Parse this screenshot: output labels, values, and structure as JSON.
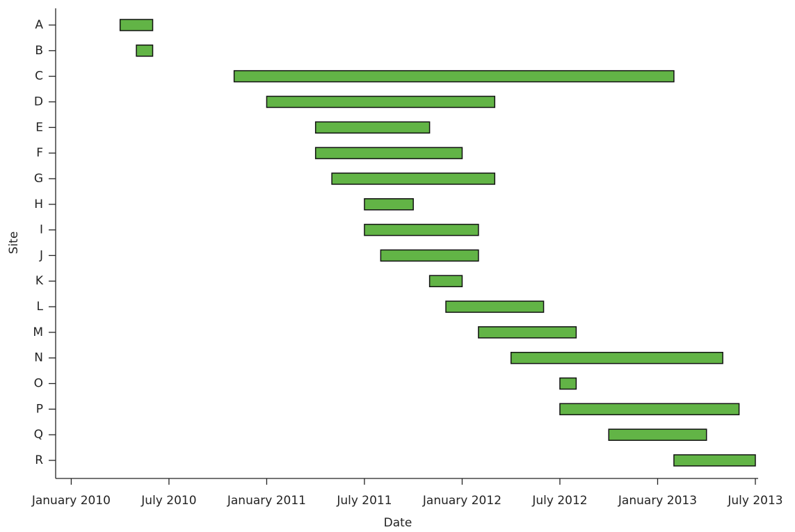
{
  "chart_data": {
    "type": "gantt",
    "xlabel": "Date",
    "ylabel": "Site",
    "categories": [
      "A",
      "B",
      "C",
      "D",
      "E",
      "F",
      "G",
      "H",
      "I",
      "J",
      "K",
      "L",
      "M",
      "N",
      "O",
      "P",
      "Q",
      "R"
    ],
    "start": [
      "2010-04",
      "2010-05",
      "2010-11",
      "2011-01",
      "2011-04",
      "2011-04",
      "2011-05",
      "2011-07",
      "2011-07",
      "2011-08",
      "2011-11",
      "2011-12",
      "2012-02",
      "2012-04",
      "2012-07",
      "2012-07",
      "2012-10",
      "2013-02"
    ],
    "end": [
      "2010-06",
      "2010-06",
      "2013-02",
      "2012-03",
      "2011-11",
      "2012-01",
      "2012-03",
      "2011-10",
      "2012-02",
      "2012-02",
      "2012-01",
      "2012-06",
      "2012-08",
      "2013-05",
      "2012-08",
      "2013-06",
      "2013-04",
      "2013-07"
    ],
    "color": "#62b446",
    "xlim": [
      "2009-12",
      "2013-07"
    ],
    "xticks": [
      {
        "value": "2010-01",
        "label": "January 2010"
      },
      {
        "value": "2010-07",
        "label": "July 2010"
      },
      {
        "value": "2011-01",
        "label": "January 2011"
      },
      {
        "value": "2011-07",
        "label": "July 2011"
      },
      {
        "value": "2012-01",
        "label": "January 2012"
      },
      {
        "value": "2012-07",
        "label": "July 2012"
      },
      {
        "value": "2013-01",
        "label": "January 2013"
      },
      {
        "value": "2013-07",
        "label": "July 2013"
      }
    ]
  }
}
